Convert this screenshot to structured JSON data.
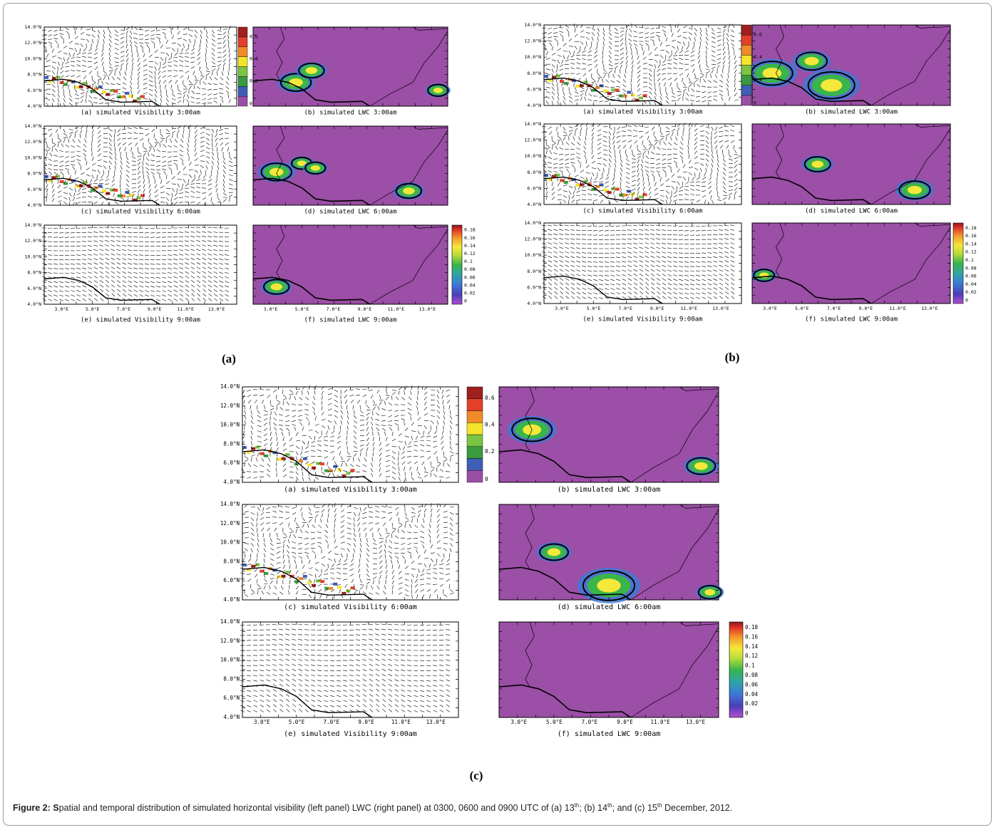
{
  "figure": {
    "lat_labels": [
      "14.0°N",
      "12.0°N",
      "10.0°N",
      "8.0°N",
      "6.0°N",
      "4.0°N"
    ],
    "lon_labels": [
      "3.0°E",
      "5.0°E",
      "7.0°E",
      "9.0°E",
      "11.0°E",
      "13.0°E"
    ],
    "colorbar_visibility": [
      "0.6",
      "0.4",
      "0.2",
      "0"
    ],
    "colorbar_lwc": [
      "0.18",
      "0.16",
      "0.14",
      "0.12",
      "0.1",
      "0.08",
      "0.06",
      "0.04",
      "0.02",
      "0"
    ],
    "groups": [
      {
        "label": "(a)",
        "panels": [
          "(a) simulated Visibility 3:00am",
          "(b) simulated LWC 3:00am",
          "(c) simulated Visibility 6:00am",
          "(d) simulated LWC 6:00am",
          "(e) simulated Visibility 9:00am",
          "(f) simulated LWC 9:00am"
        ]
      },
      {
        "label": "(b)",
        "panels": [
          "(a) simulated Visibility 3:00am",
          "(b) simulated LWC 3:00am",
          "(c) simulated Visibility 6:00am",
          "(d) simulated LWC 6:00am",
          "(e) simulated Visibility 9:00am",
          "(f) simulated LWC 9:00am"
        ]
      },
      {
        "label": "(c)",
        "panels": [
          "(a) simulated Visibility 3:00am",
          "(b) simulated LWC 3:00am",
          "(c) simulated Visibility 6:00am",
          "(d) simulated LWC 6:00am",
          "(e) simulated Visibility 9:00am",
          "(f) simulated LWC 9:00am"
        ]
      }
    ],
    "caption": {
      "bold": "Figure 2: S",
      "parts": [
        "patial and temporal distribution of simulated horizontal visibility (left panel) LWC (right panel) at 0300, 0600 and 0900 UTC of (a) 13",
        "; (b) 14",
        "; and (c) 15",
        " December, 2012."
      ],
      "sup": [
        "th",
        "th",
        "th"
      ]
    }
  }
}
